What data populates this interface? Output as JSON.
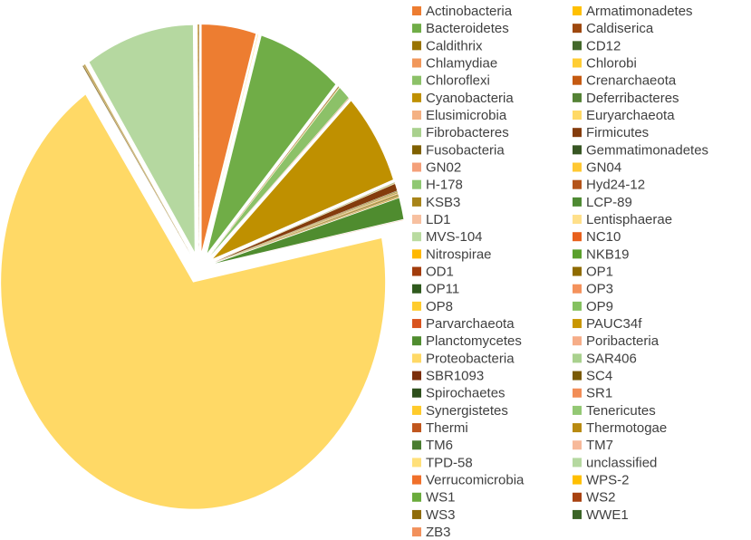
{
  "chart_data": {
    "type": "pie",
    "legend": "right",
    "categories": [
      "Actinobacteria",
      "Armatimonadetes",
      "Bacteroidetes",
      "Caldiserica",
      "Caldithrix",
      "CD12",
      "Chlamydiae",
      "Chlorobi",
      "Chloroflexi",
      "Crenarchaeota",
      "Cyanobacteria",
      "Deferribacteres",
      "Elusimicrobia",
      "Euryarchaeota",
      "Fibrobacteres",
      "Firmicutes",
      "Fusobacteria",
      "Gemmatimonadetes",
      "GN02",
      "GN04",
      "H-178",
      "Hyd24-12",
      "KSB3",
      "LCP-89",
      "LD1",
      "Lentisphaerae",
      "MVS-104",
      "NC10",
      "Nitrospirae",
      "NKB19",
      "OD1",
      "OP1",
      "OP11",
      "OP3",
      "OP8",
      "OP9",
      "Parvarchaeota",
      "PAUC34f",
      "Planctomycetes",
      "Poribacteria",
      "Proteobacteria",
      "SAR406",
      "SBR1093",
      "SC4",
      "Spirochaetes",
      "SR1",
      "Synergistetes",
      "Tenericutes",
      "Thermi",
      "Thermotogae",
      "TM6",
      "TM7",
      "TPD-58",
      "unclassified",
      "Verrucomicrobia",
      "WPS-2",
      "WS1",
      "WS2",
      "WS3",
      "WWE1",
      "ZB3"
    ],
    "values": [
      4.5,
      0.02,
      7,
      0.02,
      0.02,
      0.02,
      0.02,
      0.02,
      1,
      0.02,
      6.5,
      0.02,
      0.02,
      0.02,
      0.02,
      0.5,
      0.02,
      0.02,
      0.02,
      0.02,
      0.02,
      0.02,
      0.02,
      0.02,
      0.02,
      0.02,
      0.02,
      0.02,
      0.02,
      0.02,
      0.02,
      0.02,
      0.02,
      0.02,
      0.02,
      0.02,
      0.02,
      0.02,
      1.5,
      0.02,
      68,
      0.02,
      0.02,
      0.02,
      0.02,
      0.02,
      0.02,
      0.02,
      0.02,
      0.02,
      0.02,
      0.02,
      0.02,
      9,
      0.02,
      0.02,
      0.02,
      0.02,
      0.02,
      0.02,
      0.02
    ],
    "colors": [
      "#ed7d31",
      "#ffc000",
      "#70ad47",
      "#9e480e",
      "#997300",
      "#43682b",
      "#f1975a",
      "#ffcd33",
      "#8cc168",
      "#c55a11",
      "#bf9000",
      "#548235",
      "#f4b183",
      "#ffd966",
      "#a9d18e",
      "#843c0c",
      "#7f6000",
      "#375623",
      "#f4a07a",
      "#ffc832",
      "#8fc872",
      "#b4541a",
      "#a88419",
      "#4e8a33",
      "#f7c0a0",
      "#ffe08a",
      "#b9dba0",
      "#e8601c",
      "#ffb800",
      "#5aa02c",
      "#a23c0c",
      "#8f6b00",
      "#2f5a1d",
      "#f4925c",
      "#ffcc2e",
      "#85c160",
      "#d9531e",
      "#c99600",
      "#4f8c2f",
      "#f6ad88",
      "#ffd966",
      "#a9d18e",
      "#7b2e0a",
      "#7a5a05",
      "#2d4f1c",
      "#f28d57",
      "#ffcb2b",
      "#93c874",
      "#c0561d",
      "#b88a10",
      "#4a7d30",
      "#f7b99a",
      "#ffe07a",
      "#b5d8a0",
      "#f0702a",
      "#ffbf00",
      "#6aab3c",
      "#a84210",
      "#8f6c0a",
      "#3b6426",
      "#f2915c"
    ]
  }
}
